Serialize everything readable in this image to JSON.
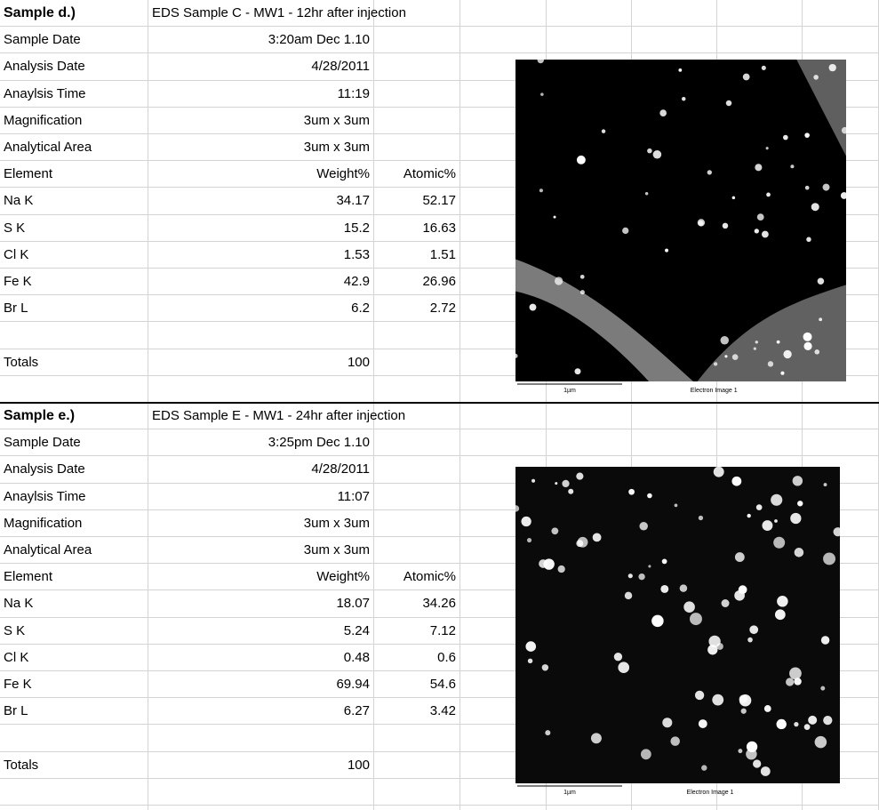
{
  "samples": [
    {
      "title": "Sample d.)",
      "description": "EDS Sample C - MW1 - 12hr after injection",
      "info": [
        [
          "Sample Date",
          "3:20am Dec 1.10"
        ],
        [
          "Analysis Date",
          "4/28/2011"
        ],
        [
          "Anaylsis Time",
          "11:19"
        ],
        [
          "Magnification",
          "3um x 3um"
        ],
        [
          "Analytical Area",
          "3um x 3um"
        ]
      ],
      "columns": [
        "Element",
        "Weight%",
        "Atomic%"
      ],
      "elements": [
        [
          "Na K",
          34.17,
          52.17
        ],
        [
          "S K",
          15.2,
          16.63
        ],
        [
          "Cl K",
          1.53,
          1.51
        ],
        [
          "Fe K",
          42.9,
          26.96
        ],
        [
          "Br L",
          6.2,
          2.72
        ]
      ],
      "totals_label": "Totals",
      "totals": 100,
      "image": {
        "scale": "1µm",
        "caption": "Electron Image 1"
      }
    },
    {
      "title": "Sample e.)",
      "description": "EDS Sample E - MW1 - 24hr after injection",
      "info": [
        [
          "Sample Date",
          "3:25pm Dec 1.10"
        ],
        [
          "Analysis Date",
          "4/28/2011"
        ],
        [
          "Anaylsis Time",
          "11:07"
        ],
        [
          "Magnification",
          "3um x 3um"
        ],
        [
          "Analytical Area",
          "3um x 3um"
        ]
      ],
      "columns": [
        "Element",
        "Weight%",
        "Atomic%"
      ],
      "elements": [
        [
          "Na K",
          18.07,
          34.26
        ],
        [
          "S K",
          5.24,
          7.12
        ],
        [
          "Cl K",
          0.48,
          0.6
        ],
        [
          "Fe K",
          69.94,
          54.6
        ],
        [
          "Br L",
          6.27,
          3.42
        ]
      ],
      "totals_label": "Totals",
      "totals": 100,
      "image": {
        "scale": "1µm",
        "caption": "Electron Image 1"
      }
    }
  ]
}
